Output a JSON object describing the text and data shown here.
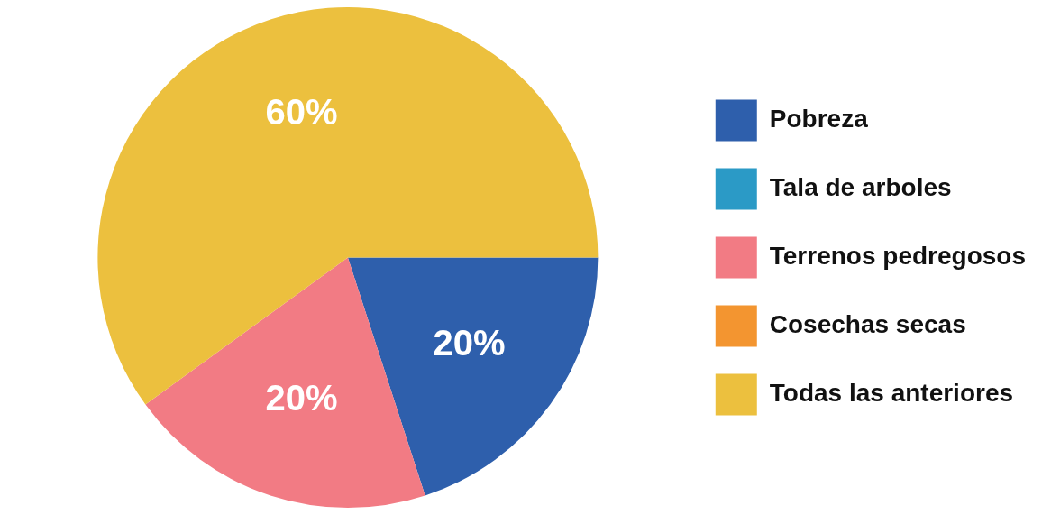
{
  "chart_data": {
    "type": "pie",
    "categories": [
      "Pobreza",
      "Tala de arboles",
      "Terrenos pedregosos",
      "Cosechas secas",
      "Todas las anteriores"
    ],
    "values": [
      20,
      0,
      20,
      0,
      60
    ],
    "colors": [
      "#2e5fac",
      "#2b9ac6",
      "#f27b84",
      "#f39530",
      "#ecc03e"
    ],
    "value_labels": [
      "20%",
      null,
      "20%",
      null,
      "60%"
    ],
    "legend": "right"
  }
}
